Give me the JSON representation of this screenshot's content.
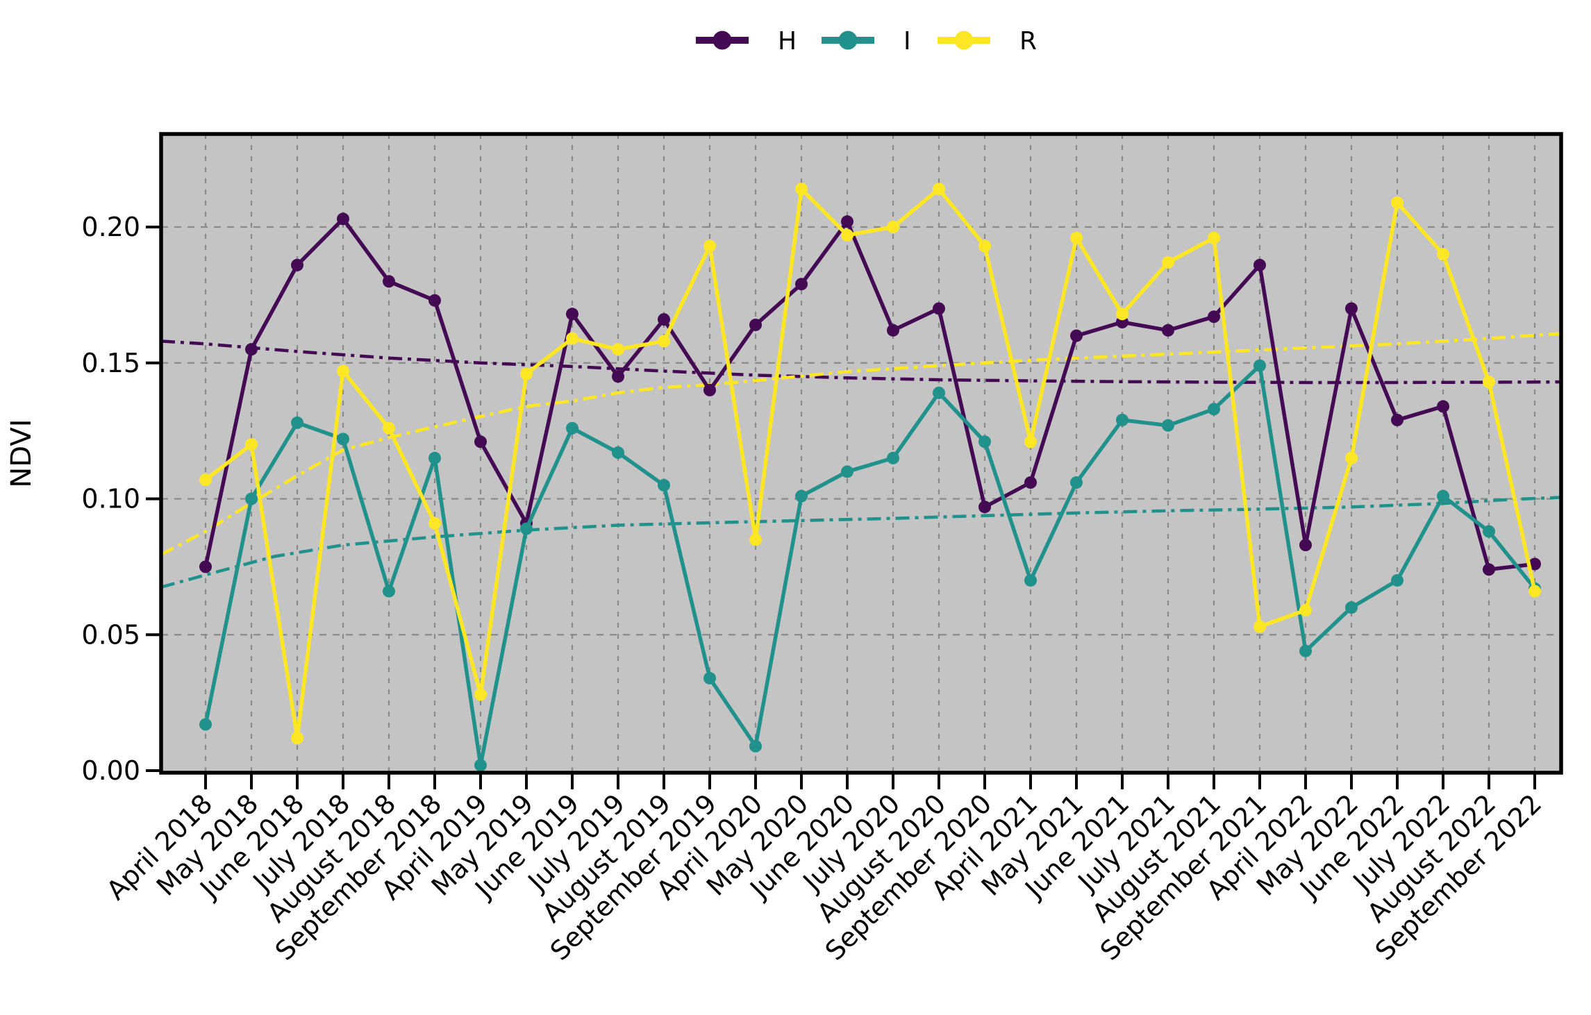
{
  "figure": {
    "background": "#ffffff",
    "plot_background": "#c4c4c4",
    "grid_color": "#8a8a8a",
    "axis_color": "#000000"
  },
  "chart_data": {
    "type": "line",
    "title": "",
    "xlabel": "",
    "ylabel": "NDVI",
    "ylim": [
      0,
      0.234
    ],
    "grid": true,
    "legend_position": "top-center",
    "yticks": [
      0.0,
      0.05,
      0.1,
      0.15,
      0.2
    ],
    "ytick_labels": [
      "0.00",
      "0.05",
      "0.10",
      "0.15",
      "0.20"
    ],
    "categories": [
      "April 2018",
      "May 2018",
      "June 2018",
      "July 2018",
      "August 2018",
      "September 2018",
      "April 2019",
      "May 2019",
      "June 2019",
      "July 2019",
      "August 2019",
      "September 2019",
      "April 2020",
      "May 2020",
      "June 2020",
      "July 2020",
      "August 2020",
      "September 2020",
      "April 2021",
      "May 2021",
      "June 2021",
      "July 2021",
      "August 2021",
      "September 2021",
      "April 2022",
      "May 2022",
      "June 2022",
      "July 2022",
      "August 2022",
      "September 2022"
    ],
    "series": [
      {
        "name": "H",
        "color": "#440a54",
        "values": [
          0.075,
          0.155,
          0.186,
          0.203,
          0.18,
          0.173,
          0.121,
          0.091,
          0.168,
          0.145,
          0.166,
          0.14,
          0.164,
          0.179,
          0.202,
          0.162,
          0.17,
          0.097,
          0.106,
          0.16,
          0.165,
          0.162,
          0.167,
          0.186,
          0.083,
          0.17,
          0.129,
          0.134,
          0.074,
          0.076
        ]
      },
      {
        "name": "I",
        "color": "#21918c",
        "values": [
          0.017,
          0.1,
          0.128,
          0.122,
          0.066,
          0.115,
          0.002,
          0.089,
          0.126,
          0.117,
          0.105,
          0.034,
          0.009,
          0.101,
          0.11,
          0.115,
          0.139,
          0.121,
          0.07,
          0.106,
          0.129,
          0.127,
          0.133,
          0.149,
          0.044,
          0.06,
          0.07,
          0.101,
          0.088,
          0.067
        ]
      },
      {
        "name": "R",
        "color": "#fde725",
        "values": [
          0.107,
          0.12,
          0.012,
          0.147,
          0.126,
          0.091,
          0.028,
          0.146,
          0.159,
          0.155,
          0.158,
          0.193,
          0.085,
          0.214,
          0.197,
          0.2,
          0.214,
          0.193,
          0.121,
          0.196,
          0.168,
          0.187,
          0.196,
          0.053,
          0.059,
          0.115,
          0.209,
          0.19,
          0.143,
          0.066
        ]
      }
    ],
    "trend_lines": [
      {
        "name": "H trend",
        "color": "#440a54",
        "line_style": "dash-dot",
        "points": [
          [
            -0.97,
            0.158
          ],
          [
            0,
            0.157
          ],
          [
            2,
            0.1542
          ],
          [
            4,
            0.1518
          ],
          [
            6,
            0.15
          ],
          [
            8,
            0.1487
          ],
          [
            10,
            0.147
          ],
          [
            12,
            0.1455
          ],
          [
            14,
            0.1445
          ],
          [
            16,
            0.1438
          ],
          [
            18,
            0.1434
          ],
          [
            20,
            0.1431
          ],
          [
            22,
            0.1429
          ],
          [
            24,
            0.1428
          ],
          [
            26,
            0.1428
          ],
          [
            28,
            0.1429
          ],
          [
            29.55,
            0.143
          ]
        ]
      },
      {
        "name": "I trend",
        "color": "#21918c",
        "line_style": "dash-dot",
        "points": [
          [
            -0.97,
            0.0675
          ],
          [
            0,
            0.072
          ],
          [
            1.5,
            0.0788
          ],
          [
            3,
            0.083
          ],
          [
            5,
            0.086
          ],
          [
            7,
            0.0885
          ],
          [
            9,
            0.0903
          ],
          [
            11,
            0.0912
          ],
          [
            13,
            0.092
          ],
          [
            15,
            0.0928
          ],
          [
            17,
            0.0938
          ],
          [
            19,
            0.0948
          ],
          [
            21,
            0.0956
          ],
          [
            23,
            0.0962
          ],
          [
            25,
            0.097
          ],
          [
            27,
            0.0983
          ],
          [
            28.5,
            0.0998
          ],
          [
            29.55,
            0.1005
          ]
        ]
      },
      {
        "name": "R trend",
        "color": "#fde725",
        "line_style": "dash-dot",
        "points": [
          [
            -0.97,
            0.0795
          ],
          [
            0,
            0.088
          ],
          [
            1,
            0.0985
          ],
          [
            2,
            0.1085
          ],
          [
            3,
            0.118
          ],
          [
            4,
            0.1225
          ],
          [
            5,
            0.1265
          ],
          [
            6,
            0.1303
          ],
          [
            7,
            0.134
          ],
          [
            8,
            0.136
          ],
          [
            9,
            0.139
          ],
          [
            10,
            0.141
          ],
          [
            11,
            0.142
          ],
          [
            12,
            0.1435
          ],
          [
            14,
            0.1468
          ],
          [
            16,
            0.149
          ],
          [
            18,
            0.151
          ],
          [
            20,
            0.1525
          ],
          [
            22,
            0.154
          ],
          [
            24,
            0.1555
          ],
          [
            26,
            0.157
          ],
          [
            28,
            0.159
          ],
          [
            29.55,
            0.1608
          ]
        ]
      }
    ]
  }
}
